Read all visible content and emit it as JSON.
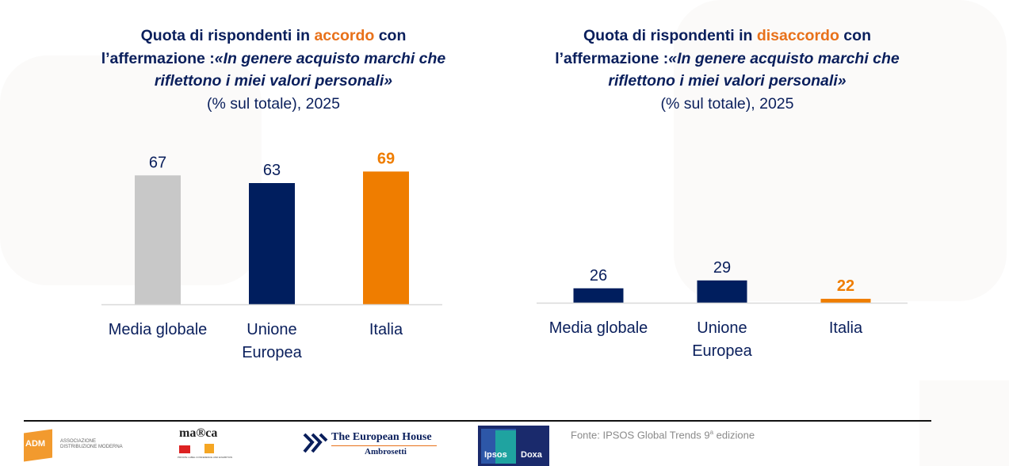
{
  "colors": {
    "navy": "#001e5e",
    "orange": "#ef7d00",
    "grey": "#c8c8c8",
    "title_highlight": "#e8711a",
    "text": "#0a1f5c"
  },
  "charts": [
    {
      "title_line1_pre": "Quota di rispondenti in ",
      "title_line1_hl": "accordo",
      "title_line1_post": " con",
      "title_line2_pre": "l’affermazione :",
      "title_line2_it": "«In genere acquisto marchi che",
      "title_line3_it": "riflettono i miei valori personali»",
      "title_line4": "(% sul totale), 2025"
    },
    {
      "title_line1_pre": "Quota di rispondenti in ",
      "title_line1_hl": "disaccordo",
      "title_line1_post": " con",
      "title_line2_pre": "l’affermazione :",
      "title_line2_it": "«In genere acquisto marchi che",
      "title_line3_it": "riflettono i miei valori personali»",
      "title_line4": "(% sul totale), 2025"
    }
  ],
  "chart_data": [
    {
      "type": "bar",
      "title": "Quota di rispondenti in accordo con l’affermazione: «In genere acquisto marchi che riflettono i miei valori personali» (% sul totale), 2025",
      "categories": [
        "Media globale",
        "Unione Europea",
        "Italia"
      ],
      "category_lines": [
        [
          "Media globale"
        ],
        [
          "Unione",
          "Europea"
        ],
        [
          "Italia"
        ]
      ],
      "values": [
        67,
        63,
        69
      ],
      "value_labels": [
        "67",
        "63",
        "69"
      ],
      "bar_colors": [
        "#c8c8c8",
        "#001e5e",
        "#ef7d00"
      ],
      "highlight": [
        false,
        false,
        true
      ],
      "xlabel": "",
      "ylabel": "%",
      "ylim": [
        0,
        70
      ],
      "grid": false,
      "legend": "none"
    },
    {
      "type": "bar",
      "title": "Quota di rispondenti in disaccordo con l’affermazione: «In genere acquisto marchi che riflettono i miei valori personali» (% sul totale), 2025",
      "categories": [
        "Media globale",
        "Unione Europea",
        "Italia"
      ],
      "category_lines": [
        [
          "Media globale"
        ],
        [
          "Unione",
          "Europea"
        ],
        [
          "Italia"
        ]
      ],
      "values": [
        26,
        29,
        22
      ],
      "value_labels": [
        "26",
        "29",
        "22"
      ],
      "bar_colors": [
        "#001e5e",
        "#001e5e",
        "#ef7d00"
      ],
      "highlight": [
        false,
        false,
        true
      ],
      "xlabel": "",
      "ylabel": "%",
      "ylim": [
        20.5,
        70
      ],
      "grid": false,
      "legend": "none"
    }
  ],
  "footer": {
    "logos": {
      "adm": {
        "mark": "ADM",
        "line1": "ASSOCIAZIONE",
        "line2": "DISTRIBUZIONE MODERNA"
      },
      "marca": {
        "name": "ma®ca",
        "sub": "PRIVATE LABEL CONFERENCE AND EXHIBITION"
      },
      "teha": {
        "line1": "The European House",
        "line2": "Ambrosetti"
      },
      "ipsos": {
        "left": "Ipsos",
        "right": "Doxa"
      }
    },
    "source_pre": "Fonte: IPSOS Global Trends 9",
    "source_sup": "a",
    "source_post": " edizione"
  }
}
